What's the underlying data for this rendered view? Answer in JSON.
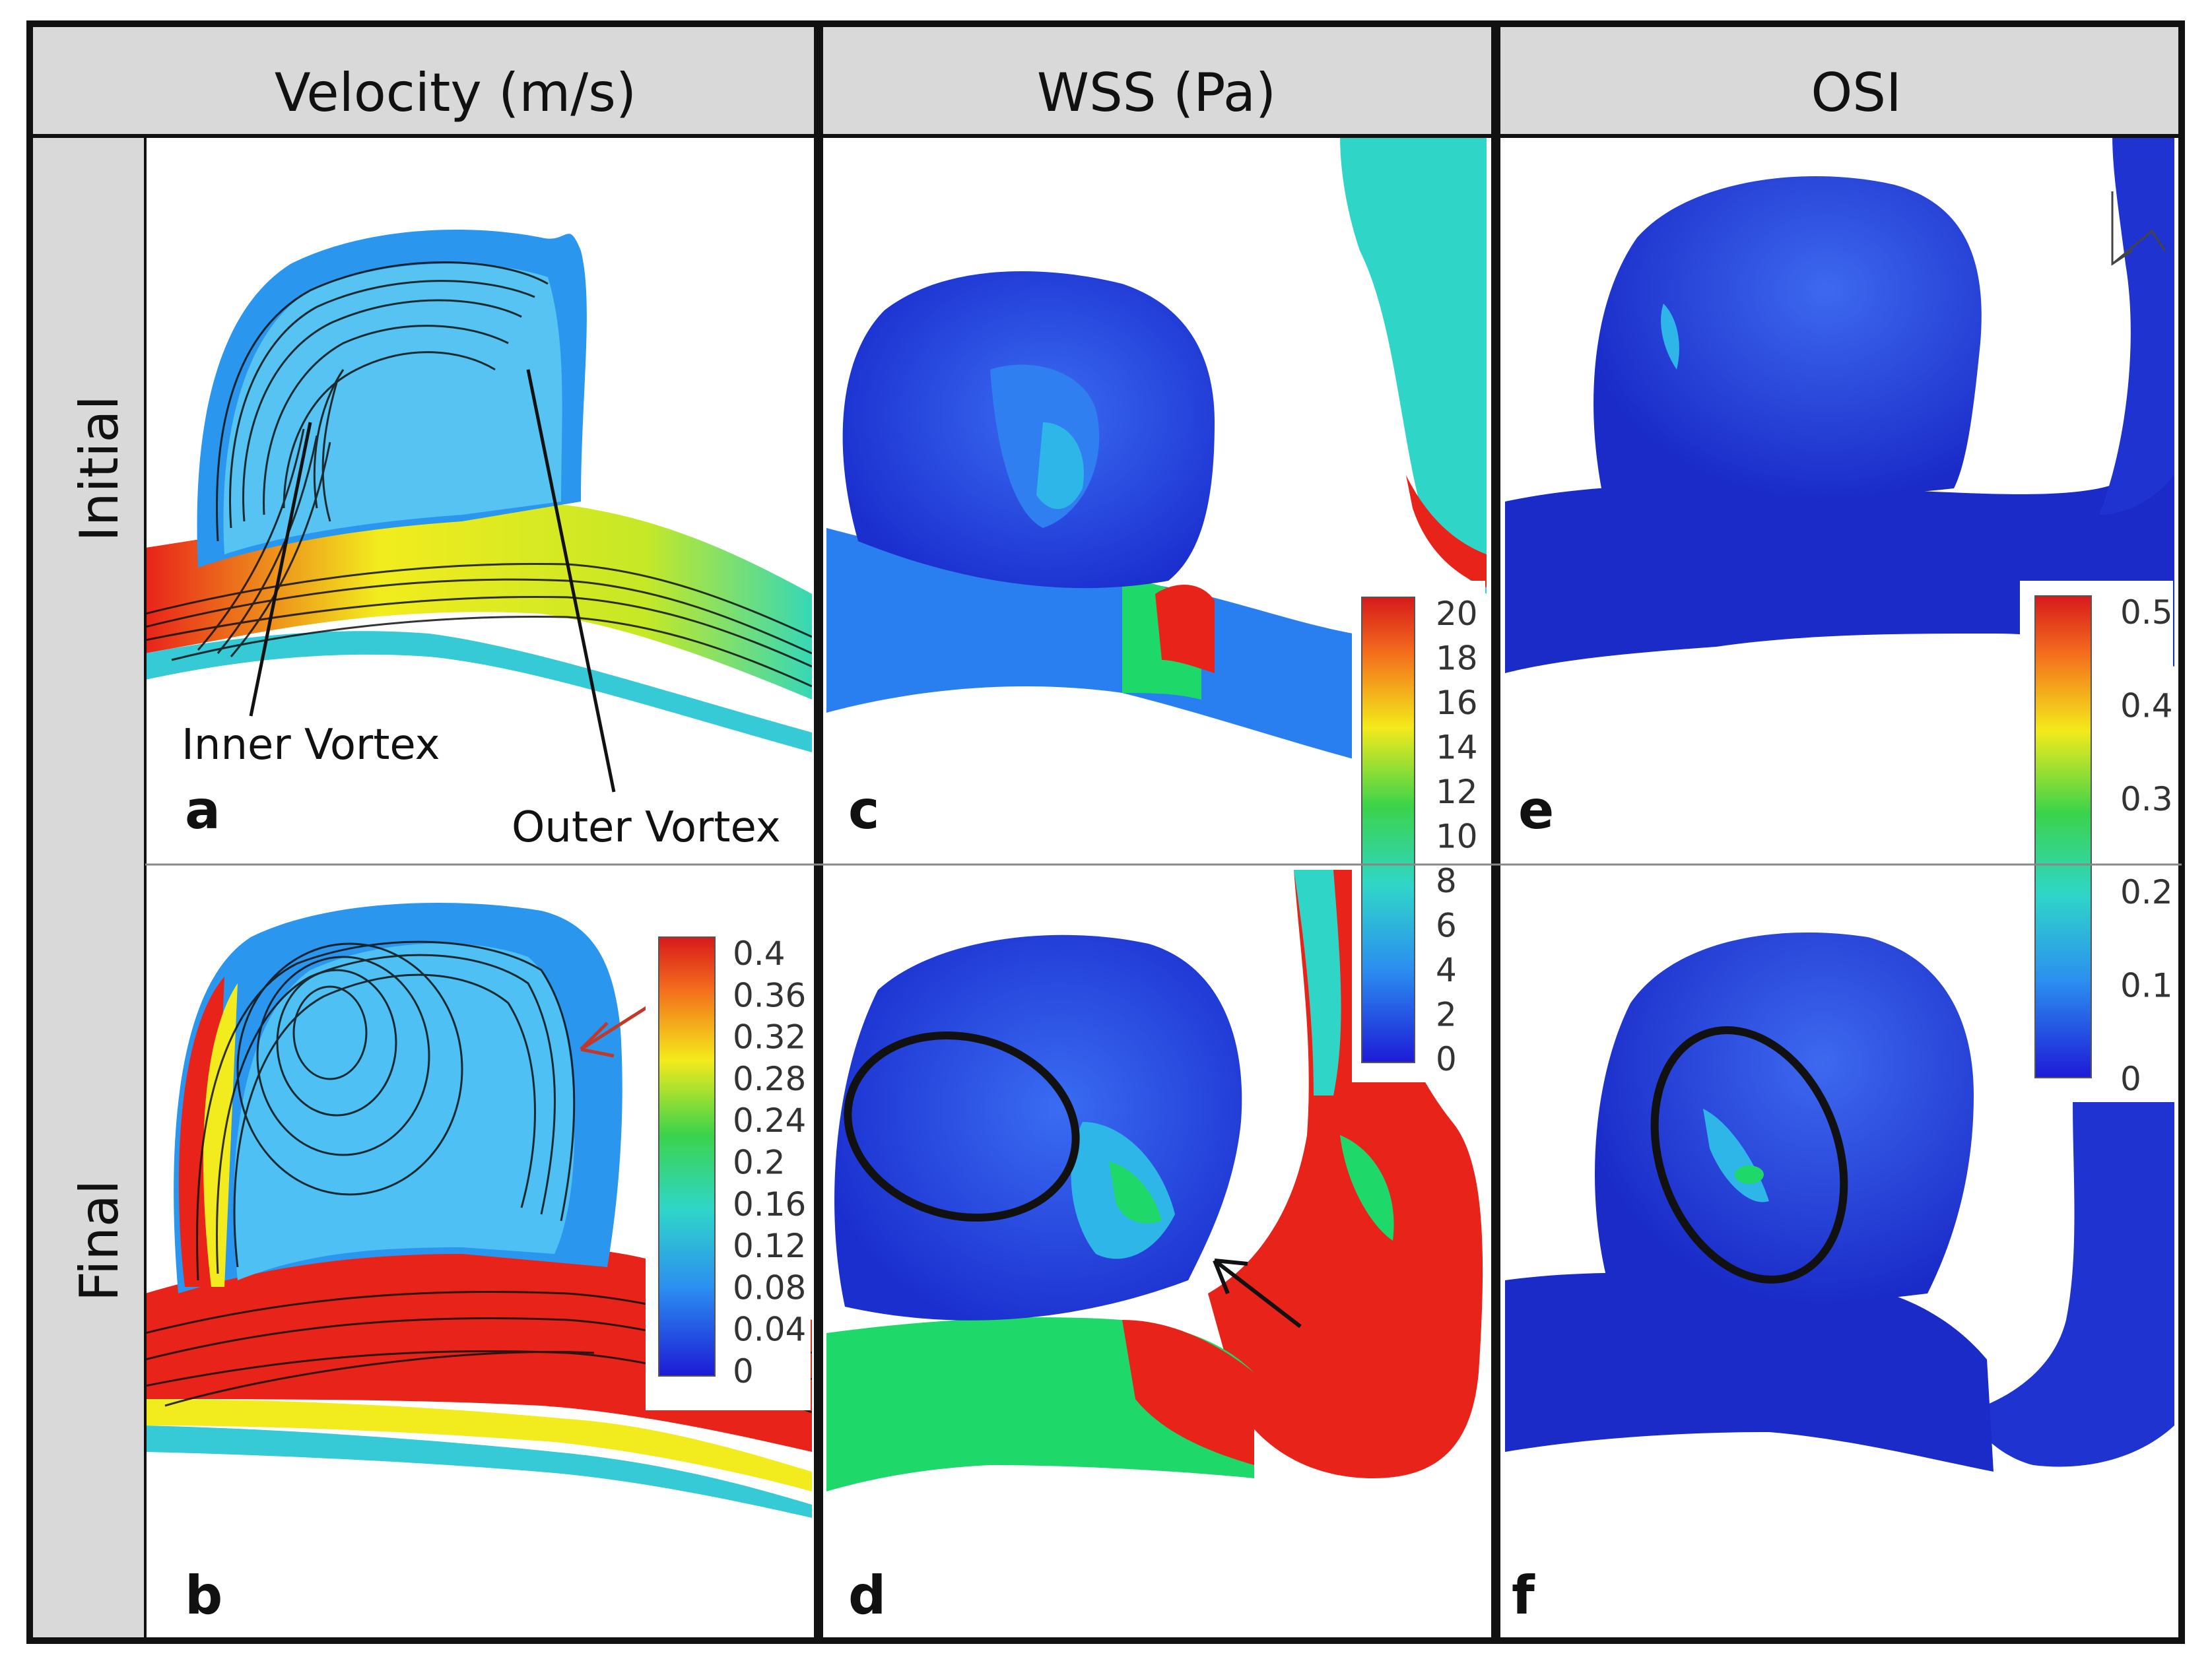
{
  "columns": [
    {
      "title": "Velocity (m/s)"
    },
    {
      "title": "WSS (Pa)"
    },
    {
      "title": "OSI"
    }
  ],
  "rows": [
    {
      "label": "Initial"
    },
    {
      "label": "Final"
    }
  ],
  "panels": {
    "a": {
      "letter": "a"
    },
    "b": {
      "letter": "b"
    },
    "c": {
      "letter": "c"
    },
    "d": {
      "letter": "d"
    },
    "e": {
      "letter": "e"
    },
    "f": {
      "letter": "f"
    }
  },
  "annotations": {
    "inner_vortex": "Inner Vortex",
    "outer_vortex": "Outer Vortex"
  },
  "colorbars": {
    "velocity": {
      "ticks": [
        "0.4",
        "0.36",
        "0.32",
        "0.28",
        "0.24",
        "0.2",
        "0.16",
        "0.12",
        "0.08",
        "0.04",
        "0"
      ]
    },
    "wss": {
      "ticks": [
        "20",
        "18",
        "16",
        "14",
        "12",
        "10",
        "8",
        "6",
        "4",
        "2",
        "0"
      ]
    },
    "osi": {
      "ticks": [
        "0.5",
        "0.4",
        "0.3",
        "0.2",
        "0.1",
        "0"
      ]
    }
  },
  "colors": {
    "contour_low": "#1a2fd6",
    "contour_mid_low": "#2fa9f0",
    "contour_mid": "#1fd86a",
    "contour_mid_high": "#f2ec1e",
    "contour_high": "#e8231a",
    "header_bg": "#d9d9d9",
    "frame": "#111111"
  }
}
